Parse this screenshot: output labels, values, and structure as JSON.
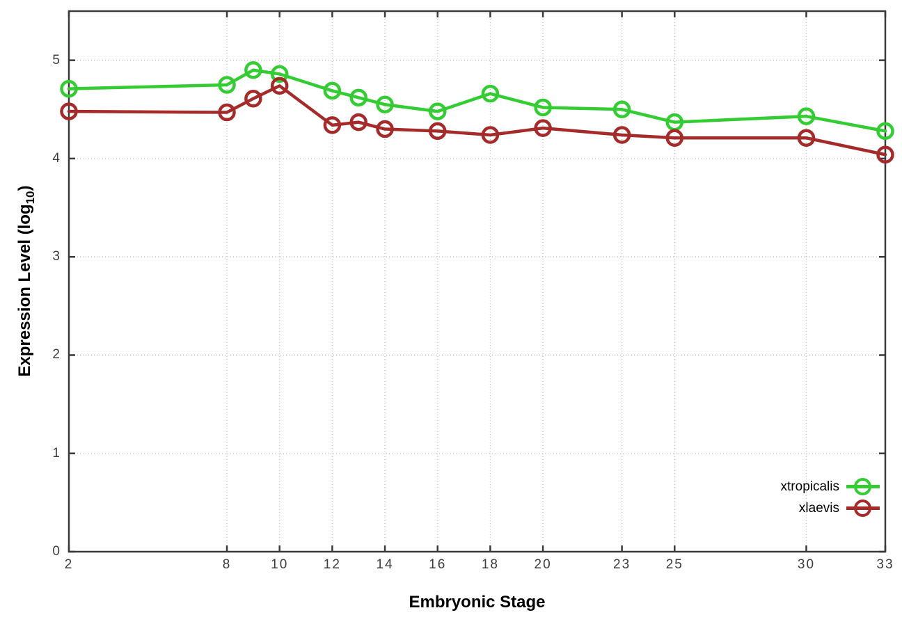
{
  "figure": {
    "background": "#ffffff",
    "axis_color": "#3a3a3a",
    "grid_color": "#bfbfbf",
    "tick_label_color": "#3c3c3c"
  },
  "chart_data": {
    "type": "line",
    "title": "",
    "xlabel": "Embryonic Stage",
    "ylabel": "Expression Level (log10)",
    "ylabel_parts": {
      "prefix": "Expression Level (log",
      "sub": "10",
      "suffix": ")"
    },
    "x": [
      2,
      8,
      9,
      10,
      12,
      13,
      14,
      16,
      18,
      20,
      23,
      25,
      30,
      33
    ],
    "series": [
      {
        "name": "xtropicalis",
        "color": "#33cc33",
        "marker": "open-circle",
        "values": [
          4.71,
          4.75,
          4.9,
          4.86,
          4.69,
          4.62,
          4.55,
          4.48,
          4.66,
          4.52,
          4.5,
          4.37,
          4.43,
          4.28
        ]
      },
      {
        "name": "xlaevis",
        "color": "#a52a2a",
        "marker": "open-circle",
        "values": [
          4.48,
          4.47,
          4.61,
          4.74,
          4.34,
          4.37,
          4.3,
          4.28,
          4.24,
          4.31,
          4.24,
          4.21,
          4.21,
          4.04
        ]
      }
    ],
    "xticks": [
      2,
      8,
      10,
      12,
      14,
      16,
      18,
      20,
      23,
      25,
      30,
      33
    ],
    "yticks": [
      0,
      1,
      2,
      3,
      4,
      5
    ],
    "xlim": [
      2,
      33
    ],
    "ylim": [
      0,
      5.5
    ],
    "grid": true,
    "legend_position": "inside-right-bottom"
  }
}
